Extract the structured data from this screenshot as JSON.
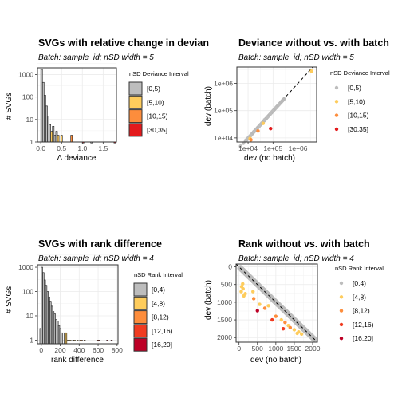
{
  "chart_data": [
    {
      "id": "p1",
      "type": "bar",
      "title": "SVGs with relative change in devian",
      "subtitle": "Batch: sample_id; nSD width = 5",
      "xlabel": "Δ deviance",
      "ylabel": "# SVGs",
      "xlim": [
        -0.08,
        1.82
      ],
      "xticks": [
        0.0,
        0.5,
        1.0,
        1.5
      ],
      "xtick_labels": [
        "0.0",
        "0.5",
        "1.0",
        "1.5"
      ],
      "ylog": true,
      "ylim_log": [
        0,
        3.3
      ],
      "yticks": [
        1,
        10,
        100,
        1000
      ],
      "ytick_labels": [
        "1",
        "10",
        "100",
        "1000"
      ],
      "bin_width": 0.04,
      "legend_title": "nSD Deviance Interval",
      "legend_entries": [
        "[0,5)",
        "[5,10)",
        "[10,15)",
        "[30,35]"
      ],
      "legend_colors": [
        "#bdbdbd",
        "#fecc5c",
        "#fd8d3c",
        "#e31a1c"
      ],
      "grid": true,
      "legend_placement": "right",
      "bars": [
        {
          "x": 0.0,
          "value": 1700,
          "color": "#bdbdbd"
        },
        {
          "x": 0.04,
          "value": 450,
          "color": "#bdbdbd"
        },
        {
          "x": 0.08,
          "value": 120,
          "color": "#bdbdbd"
        },
        {
          "x": 0.12,
          "value": 40,
          "color": "#bdbdbd"
        },
        {
          "x": 0.16,
          "value": 14,
          "color": "#bdbdbd"
        },
        {
          "x": 0.2,
          "value": 6,
          "color": "#bdbdbd"
        },
        {
          "x": 0.24,
          "value": 3,
          "color": "#fecc5c"
        },
        {
          "x": 0.28,
          "value": 5,
          "color": "#bdbdbd"
        },
        {
          "x": 0.32,
          "value": 2,
          "color": "#bdbdbd"
        },
        {
          "x": 0.36,
          "value": 3,
          "color": "#bdbdbd"
        },
        {
          "x": 0.4,
          "value": 2,
          "color": "#fecc5c"
        },
        {
          "x": 0.48,
          "value": 2,
          "color": "#fecc5c"
        },
        {
          "x": 0.72,
          "value": 2,
          "color": "#fd8d3c"
        },
        {
          "x": 1.0,
          "value": 1,
          "color": "#e31a1c"
        },
        {
          "x": 1.2,
          "value": 1,
          "color": "#bdbdbd"
        },
        {
          "x": 1.76,
          "value": 1,
          "color": "#e31a1c"
        }
      ]
    },
    {
      "id": "p2",
      "type": "scatter",
      "title": "Deviance without vs. with batch",
      "subtitle": "Batch: sample_id; nSD width = 5",
      "xlabel": "dev (no batch)",
      "ylabel": "dev (batch)",
      "loglog": true,
      "xlim_log": [
        3.55,
        6.75
      ],
      "ylim_log": [
        3.85,
        6.6
      ],
      "xticks": [
        10000,
        100000,
        1000000
      ],
      "xtick_labels": [
        "1e+04",
        "1e+05",
        "1e+06"
      ],
      "yticks": [
        10000,
        100000,
        1000000
      ],
      "ytick_labels": [
        "1e+04",
        "1e+05",
        "1e+06"
      ],
      "reference_line": "y = x (dashed)",
      "legend_title": "nSD Deviance Interval",
      "legend_entries": [
        "[0,5)",
        "[5,10)",
        "[10,15)",
        "[30,35]"
      ],
      "legend_colors": [
        "#bdbdbd",
        "#fecc5c",
        "#fd8d3c",
        "#e31a1c"
      ],
      "grid": true,
      "legend_placement": "right",
      "points": [
        {
          "x": 5000,
          "y": 5000,
          "c": 0
        },
        {
          "x": 6500,
          "y": 6400,
          "c": 0
        },
        {
          "x": 8000,
          "y": 8100,
          "c": 0
        },
        {
          "x": 10000,
          "y": 9800,
          "c": 0
        },
        {
          "x": 13000,
          "y": 12500,
          "c": 0
        },
        {
          "x": 17000,
          "y": 17000,
          "c": 0
        },
        {
          "x": 22000,
          "y": 21000,
          "c": 0
        },
        {
          "x": 28000,
          "y": 27500,
          "c": 0
        },
        {
          "x": 36000,
          "y": 35000,
          "c": 0
        },
        {
          "x": 46000,
          "y": 46000,
          "c": 0
        },
        {
          "x": 60000,
          "y": 58000,
          "c": 0
        },
        {
          "x": 78000,
          "y": 76000,
          "c": 0
        },
        {
          "x": 100000,
          "y": 98000,
          "c": 0
        },
        {
          "x": 130000,
          "y": 126000,
          "c": 0
        },
        {
          "x": 170000,
          "y": 165000,
          "c": 0
        },
        {
          "x": 12000,
          "y": 9500,
          "c": 1
        },
        {
          "x": 40000,
          "y": 34000,
          "c": 1
        },
        {
          "x": 3500000,
          "y": 2800000,
          "c": 1
        },
        {
          "x": 13000,
          "y": 8500,
          "c": 2
        },
        {
          "x": 25000,
          "y": 18000,
          "c": 2
        },
        {
          "x": 80000,
          "y": 22000,
          "c": 3
        }
      ]
    },
    {
      "id": "p3",
      "type": "bar",
      "title": "SVGs with rank difference",
      "subtitle": "Batch: sample_id; nSD width = 4",
      "xlabel": "rank difference",
      "ylabel": "# SVGs",
      "xlim": [
        -40,
        810
      ],
      "xticks": [
        0,
        200,
        400,
        600,
        800
      ],
      "xtick_labels": [
        "0",
        "200",
        "400",
        "600",
        "800"
      ],
      "ylog": true,
      "ylim_log": [
        -0.15,
        3.1
      ],
      "yticks": [
        1,
        10,
        100,
        1000
      ],
      "ytick_labels": [
        "1",
        "10",
        "100",
        "1000"
      ],
      "bin_width": 15,
      "legend_title": "nSD Rank Interval",
      "legend_entries": [
        "[0,4)",
        "[4,8)",
        "[8,12)",
        "[12,16)",
        "[16,20]"
      ],
      "legend_colors": [
        "#bdbdbd",
        "#fecc5c",
        "#fd8d3c",
        "#f03b20",
        "#bd0026"
      ],
      "grid": true,
      "legend_placement": "right",
      "bars": [
        {
          "x": -15,
          "value": 3,
          "color": "#bdbdbd"
        },
        {
          "x": 0,
          "value": 1000,
          "color": "#bdbdbd"
        },
        {
          "x": 15,
          "value": 600,
          "color": "#bdbdbd"
        },
        {
          "x": 30,
          "value": 300,
          "color": "#bdbdbd"
        },
        {
          "x": 45,
          "value": 180,
          "color": "#bdbdbd"
        },
        {
          "x": 60,
          "value": 100,
          "color": "#bdbdbd"
        },
        {
          "x": 75,
          "value": 60,
          "color": "#bdbdbd"
        },
        {
          "x": 90,
          "value": 40,
          "color": "#bdbdbd"
        },
        {
          "x": 105,
          "value": 25,
          "color": "#bdbdbd"
        },
        {
          "x": 120,
          "value": 15,
          "color": "#bdbdbd"
        },
        {
          "x": 135,
          "value": 12,
          "color": "#bdbdbd"
        },
        {
          "x": 150,
          "value": 7,
          "color": "#bdbdbd"
        },
        {
          "x": 165,
          "value": 6,
          "color": "#bdbdbd"
        },
        {
          "x": 180,
          "value": 4,
          "color": "#bdbdbd"
        },
        {
          "x": 195,
          "value": 3,
          "color": "#bdbdbd"
        },
        {
          "x": 210,
          "value": 2,
          "color": "#bdbdbd"
        },
        {
          "x": 240,
          "value": 2,
          "color": "#bdbdbd"
        },
        {
          "x": 255,
          "value": 2,
          "color": "#fecc5c"
        },
        {
          "x": 270,
          "value": 1,
          "color": "#fecc5c"
        },
        {
          "x": 300,
          "value": 1,
          "color": "#fecc5c"
        },
        {
          "x": 330,
          "value": 1,
          "color": "#fecc5c"
        },
        {
          "x": 345,
          "value": 1,
          "color": "#fecc5c"
        },
        {
          "x": 375,
          "value": 1,
          "color": "#fecc5c"
        },
        {
          "x": 405,
          "value": 1,
          "color": "#fd8d3c"
        },
        {
          "x": 420,
          "value": 1,
          "color": "#fd8d3c"
        },
        {
          "x": 450,
          "value": 1,
          "color": "#fd8d3c"
        },
        {
          "x": 585,
          "value": 1,
          "color": "#f03b20"
        },
        {
          "x": 600,
          "value": 1,
          "color": "#f03b20"
        },
        {
          "x": 690,
          "value": 1,
          "color": "#bd0026"
        },
        {
          "x": 735,
          "value": 1,
          "color": "#bd0026"
        }
      ]
    },
    {
      "id": "p4",
      "type": "scatter",
      "title": "Rank without vs. with batch",
      "subtitle": "Batch: sample_id; nSD width = 4",
      "xlabel": "dev (no batch)",
      "ylabel": "dev (batch)",
      "xlim": [
        -80,
        2130
      ],
      "ylim": [
        -80,
        2130
      ],
      "y_reversed": true,
      "xticks": [
        0,
        500,
        1000,
        1500,
        2000
      ],
      "xtick_labels": [
        "0",
        "500",
        "1000",
        "1500",
        "2000"
      ],
      "yticks": [
        0,
        500,
        1000,
        1500,
        2000
      ],
      "ytick_labels": [
        "0",
        "500",
        "1000",
        "1500",
        "2000"
      ],
      "reference_line": "y = x (dashed)",
      "diagonal_points_color": "#bdbdbd",
      "legend_title": "nSD Rank Interval",
      "legend_entries": [
        "[0,4)",
        "[4,8)",
        "[8,12)",
        "[12,16)",
        "[16,20]"
      ],
      "legend_colors": [
        "#bdbdbd",
        "#fecc5c",
        "#fd8d3c",
        "#f03b20",
        "#bd0026"
      ],
      "grid": true,
      "legend_placement": "right",
      "points": [
        {
          "x": 100,
          "y": 480,
          "c": 1
        },
        {
          "x": 70,
          "y": 560,
          "c": 1
        },
        {
          "x": 110,
          "y": 620,
          "c": 1
        },
        {
          "x": 60,
          "y": 700,
          "c": 1
        },
        {
          "x": 170,
          "y": 760,
          "c": 1
        },
        {
          "x": 130,
          "y": 820,
          "c": 1
        },
        {
          "x": 380,
          "y": 700,
          "c": 1
        },
        {
          "x": 560,
          "y": 1060,
          "c": 1
        },
        {
          "x": 800,
          "y": 1100,
          "c": 1
        },
        {
          "x": 1150,
          "y": 1500,
          "c": 1
        },
        {
          "x": 1340,
          "y": 1660,
          "c": 1
        },
        {
          "x": 1500,
          "y": 1780,
          "c": 1
        },
        {
          "x": 1620,
          "y": 1840,
          "c": 1
        },
        {
          "x": 1700,
          "y": 1900,
          "c": 1
        },
        {
          "x": 1580,
          "y": 1880,
          "c": 1
        },
        {
          "x": 400,
          "y": 900,
          "c": 2
        },
        {
          "x": 700,
          "y": 1170,
          "c": 2
        },
        {
          "x": 1000,
          "y": 1400,
          "c": 2
        },
        {
          "x": 1250,
          "y": 1570,
          "c": 2
        },
        {
          "x": 1390,
          "y": 1720,
          "c": 2
        },
        {
          "x": 900,
          "y": 1500,
          "c": 3
        },
        {
          "x": 1200,
          "y": 1750,
          "c": 3
        },
        {
          "x": 500,
          "y": 1240,
          "c": 4
        }
      ]
    }
  ]
}
